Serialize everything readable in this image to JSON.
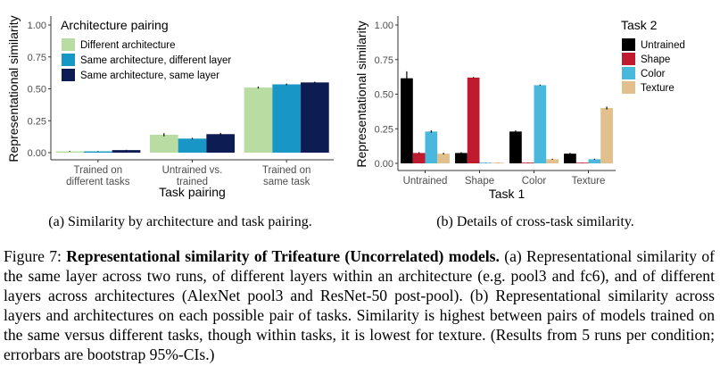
{
  "colors": {
    "different_architecture": "#b9dca3",
    "same_arch_diff_layer": "#1897c6",
    "same_arch_same_layer": "#0d1c52",
    "untrained": "#000000",
    "shape": "#c01a2e",
    "color": "#4ab8dd",
    "texture": "#e2c08d"
  },
  "chart_data": [
    {
      "type": "bar",
      "xlabel": "Task pairing",
      "ylabel": "Representational similarity",
      "ylim": [
        0,
        1
      ],
      "yticks": [
        "0.00",
        "0.25",
        "0.50",
        "0.75",
        "1.00"
      ],
      "categories": [
        "Trained on different tasks",
        "Untrained vs. trained",
        "Trained on same task"
      ],
      "category_lines": [
        [
          "Trained on",
          "different tasks"
        ],
        [
          "Untrained vs.",
          "trained"
        ],
        [
          "Trained on",
          "same task"
        ]
      ],
      "legend_title": "Architecture pairing",
      "legend_position": "top-left",
      "series": [
        {
          "name": "Different architecture",
          "values": [
            0.01,
            0.14,
            0.51
          ],
          "err": [
            0.003,
            0.012,
            0.008
          ]
        },
        {
          "name": "Same architecture, different layer",
          "values": [
            0.01,
            0.11,
            0.535
          ],
          "err": [
            0.002,
            0.006,
            0.006
          ]
        },
        {
          "name": "Same architecture, same layer",
          "values": [
            0.02,
            0.145,
            0.55
          ],
          "err": [
            0.002,
            0.01,
            0.006
          ]
        }
      ]
    },
    {
      "type": "bar",
      "xlabel": "Task 1",
      "ylabel": "Representational similarity",
      "ylim": [
        0,
        1
      ],
      "yticks": [
        "0.00",
        "0.25",
        "0.50",
        "0.75",
        "1.00"
      ],
      "categories": [
        "Untrained",
        "Shape",
        "Color",
        "Texture"
      ],
      "legend_title": "Task 2",
      "legend_position": "top-right",
      "series": [
        {
          "name": "Untrained",
          "values": [
            0.615,
            0.075,
            0.23,
            0.07
          ],
          "err": [
            0.05,
            0.006,
            0.008,
            0.006
          ]
        },
        {
          "name": "Shape",
          "values": [
            0.075,
            0.62,
            0.005,
            0.005
          ],
          "err": [
            0.006,
            0.004,
            0.001,
            0.001
          ]
        },
        {
          "name": "Color",
          "values": [
            0.23,
            0.005,
            0.565,
            0.03
          ],
          "err": [
            0.008,
            0.001,
            0.004,
            0.004
          ]
        },
        {
          "name": "Texture",
          "values": [
            0.07,
            0.005,
            0.03,
            0.4
          ],
          "err": [
            0.006,
            0.001,
            0.004,
            0.01
          ]
        }
      ]
    }
  ],
  "subcaption_a": "(a) Similarity by architecture and task pairing.",
  "subcaption_b": "(b) Details of cross-task similarity.",
  "caption": {
    "label": "Figure 7: ",
    "bold": "Representational similarity of Trifeature (Uncorrelated) models.",
    "text": " (a) Representational similarity of the same layer across two runs, of different layers within an architecture (e.g. pool3 and fc6), and of different layers across architectures (AlexNet pool3 and ResNet-50 post-pool). (b) Representational similarity across layers and architectures on each possible pair of tasks. Similarity is highest between pairs of models trained on the same versus different tasks, though within tasks, it is lowest for texture. (Results from 5 runs per condition; errorbars are bootstrap 95%-CIs.)"
  }
}
